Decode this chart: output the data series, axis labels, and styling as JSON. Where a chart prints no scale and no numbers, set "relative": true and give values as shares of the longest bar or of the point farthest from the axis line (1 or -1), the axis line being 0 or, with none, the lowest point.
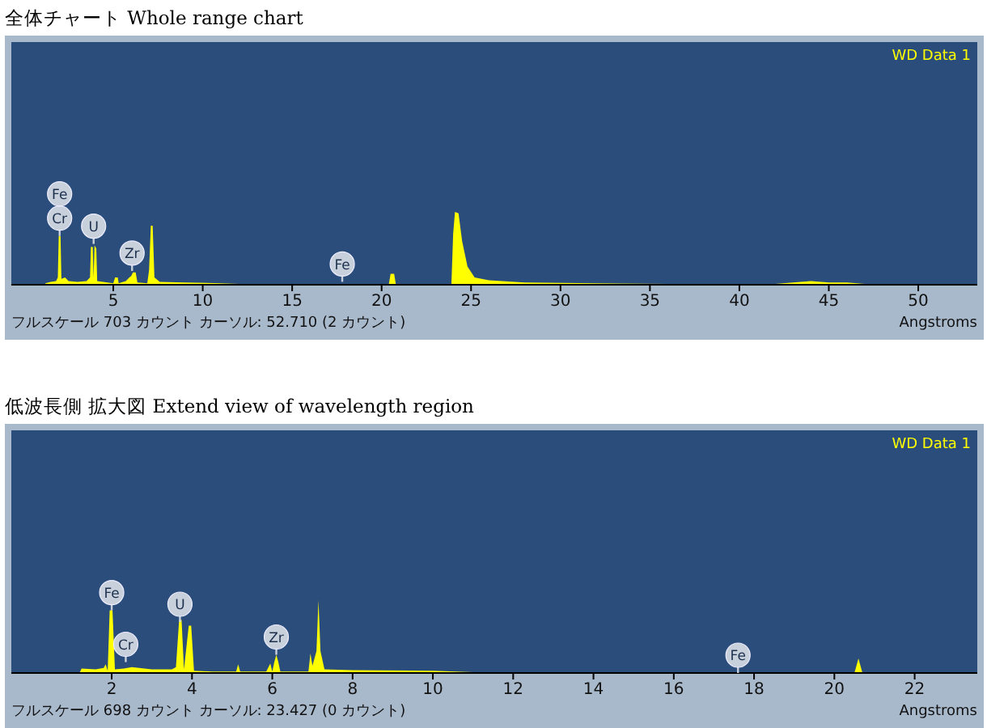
{
  "chart_data": [
    {
      "type": "area",
      "title": "全体チャート Whole range chart",
      "xlabel": "Angstroms",
      "relative": true,
      "legend": "top right",
      "xlim": [
        -0.7,
        53.3
      ],
      "xticks": [
        5,
        10,
        15,
        20,
        25,
        30,
        35,
        40,
        45,
        50
      ],
      "series": [
        {
          "name": "WD Data 1",
          "color": "#ffff00",
          "x": [
            1.2,
            1.5,
            1.8,
            1.9,
            1.95,
            2.05,
            2.1,
            2.3,
            2.5,
            3.0,
            3.5,
            3.7,
            3.75,
            3.85,
            3.9,
            3.95,
            4.05,
            4.1,
            5.0,
            5.1,
            5.25,
            5.3,
            5.7,
            5.9,
            6.0,
            6.1,
            6.25,
            6.35,
            6.9,
            7.0,
            7.1,
            7.2,
            7.3,
            7.6,
            9,
            11,
            12,
            20.4,
            20.5,
            20.7,
            20.8,
            23.9,
            24.0,
            24.1,
            24.3,
            24.5,
            24.8,
            25.2,
            26,
            28,
            32,
            36,
            42,
            43,
            44,
            45,
            46,
            47,
            50
          ],
          "values": [
            0.02,
            0.04,
            0.05,
            0.1,
            0.67,
            0.67,
            0.08,
            0.1,
            0.05,
            0.04,
            0.05,
            0.1,
            0.52,
            0.52,
            0.1,
            0.54,
            0.5,
            0.05,
            0.02,
            0.1,
            0.1,
            0.02,
            0.05,
            0.1,
            0.12,
            0.17,
            0.17,
            0.03,
            0.02,
            0.2,
            0.81,
            0.81,
            0.1,
            0.04,
            0.03,
            0.02,
            0.01,
            0,
            0.15,
            0.15,
            0,
            0,
            0.7,
            1,
            0.98,
            0.6,
            0.25,
            0.1,
            0.06,
            0.03,
            0.02,
            0.01,
            0.01,
            0.03,
            0.05,
            0.03,
            0.03,
            0.01,
            0
          ]
        }
      ],
      "annotations": [
        {
          "text": "Cr",
          "x": 2.0,
          "y": 0.67
        },
        {
          "text": "Fe",
          "x": 2.0,
          "y": 0.67
        },
        {
          "text": "U",
          "x": 3.9,
          "y": 0.56
        },
        {
          "text": "Zr",
          "x": 6.05,
          "y": 0.19
        },
        {
          "text": "Fe",
          "x": 17.8,
          "y": 0.04
        },
        "フルスケール 703 カウント カーソル: 52.710  (2 カウント)"
      ]
    },
    {
      "type": "area",
      "title": "低波長側 拡大図 Extend view of wavelength region",
      "xlabel": "Angstroms",
      "relative": true,
      "legend": "top right",
      "xlim": [
        -0.5,
        23.56
      ],
      "xticks": [
        2,
        4,
        6,
        8,
        10,
        12,
        14,
        16,
        18,
        20,
        22
      ],
      "series": [
        {
          "name": "WD Data 1",
          "color": "#ffff00",
          "x": [
            1.2,
            1.25,
            1.6,
            1.8,
            1.85,
            1.9,
            1.95,
            2.02,
            2.08,
            2.3,
            2.5,
            3.0,
            3.5,
            3.6,
            3.68,
            3.74,
            3.8,
            3.92,
            3.98,
            4.05,
            4.5,
            5.1,
            5.15,
            5.2,
            5.85,
            5.95,
            6.0,
            6.05,
            6.1,
            6.15,
            6.2,
            6.9,
            6.95,
            7.0,
            7.1,
            7.15,
            7.2,
            7.3,
            8,
            10,
            11,
            20.5,
            20.6,
            20.7
          ],
          "values": [
            0,
            0.06,
            0.05,
            0.07,
            0.12,
            0.03,
            0.86,
            0.86,
            0.05,
            0.06,
            0.08,
            0.05,
            0.05,
            0.08,
            0.73,
            0.73,
            0.05,
            0.65,
            0.65,
            0.03,
            0.02,
            0.02,
            0.12,
            0.02,
            0.02,
            0.13,
            0.02,
            0.15,
            0.25,
            0.15,
            0.02,
            0.02,
            0.27,
            0.1,
            0.3,
            1,
            0.3,
            0.05,
            0.04,
            0.03,
            0.01,
            0,
            0.2,
            0
          ]
        }
      ],
      "annotations": [
        {
          "text": "Fe",
          "x": 2.0,
          "y": 0.86
        },
        {
          "text": "Cr",
          "x": 2.35,
          "y": 0.15
        },
        {
          "text": "U",
          "x": 3.7,
          "y": 0.7
        },
        {
          "text": "Zr",
          "x": 6.1,
          "y": 0.25
        },
        {
          "text": "Fe",
          "x": 17.6,
          "y": 0.0
        },
        "フルスケール 698 カウント カーソル: 23.427  (0 カウント)"
      ]
    }
  ]
}
